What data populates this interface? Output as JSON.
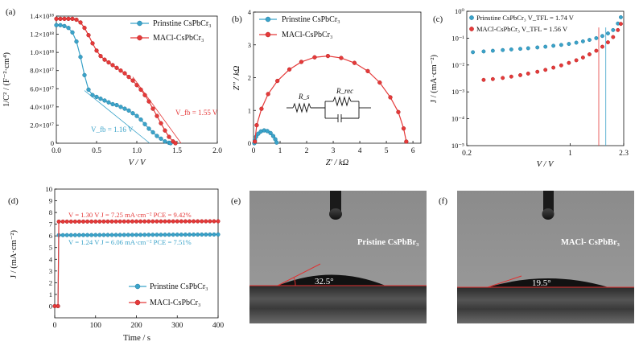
{
  "colors": {
    "blue": "#3ba3c9",
    "red": "#e53a3a",
    "axis": "#111111"
  },
  "chart_data": [
    {
      "panel": "(a)",
      "type": "line",
      "xlabel": "V / V",
      "ylabel": "1/C² / (F⁻²·cm⁴)",
      "xlim": [
        0,
        2.0
      ],
      "ylim": [
        0,
        1.4e+18
      ],
      "xticks": [
        "0.0",
        "0.5",
        "1.0",
        "1.5",
        "2.0"
      ],
      "yticks": [
        "0",
        "2.0×10¹⁷",
        "4.0×10¹⁷",
        "6.0×10¹⁷",
        "8.0×10¹⁷",
        "1.0×10¹⁸",
        "1.2×10¹⁸",
        "1.4×10¹⁸"
      ],
      "legend": [
        "Prinstine CsPbCr₃",
        "MACl-CsPbCr₃"
      ],
      "annotations": [
        "V_fb = 1.16 V",
        "V_fb = 1.55 V"
      ],
      "series": [
        {
          "name": "Prinstine CsPbCr₃",
          "color": "blue",
          "x": [
            0,
            0.05,
            0.1,
            0.15,
            0.2,
            0.25,
            0.3,
            0.35,
            0.4,
            0.45,
            0.5,
            0.55,
            0.6,
            0.65,
            0.7,
            0.75,
            0.8,
            0.85,
            0.9,
            0.95,
            1.0,
            1.05,
            1.1,
            1.15,
            1.2,
            1.25,
            1.3,
            1.35,
            1.4,
            1.42
          ],
          "y": [
            1.3e+18,
            1.3e+18,
            1.29e+18,
            1.27e+18,
            1.22e+18,
            1.12e+18,
            9.5e+17,
            7.5e+17,
            5.9e+17,
            5.3e+17,
            5.1e+17,
            4.9e+17,
            4.7e+17,
            4.5e+17,
            4.3e+17,
            4.2e+17,
            4e+17,
            3.8e+17,
            3.6e+17,
            3.3e+17,
            3e+17,
            2.6e+17,
            2.1e+17,
            1.6e+17,
            1.2e+17,
            8e+16,
            5e+16,
            2e+16,
            5000000000000000.0,
            0
          ]
        },
        {
          "name": "MACl-CsPbCr₃",
          "color": "red",
          "x": [
            0,
            0.05,
            0.1,
            0.15,
            0.2,
            0.25,
            0.3,
            0.35,
            0.4,
            0.45,
            0.5,
            0.55,
            0.6,
            0.65,
            0.7,
            0.75,
            0.8,
            0.85,
            0.9,
            0.95,
            1.0,
            1.05,
            1.1,
            1.15,
            1.2,
            1.25,
            1.3,
            1.35,
            1.4,
            1.45,
            1.48
          ],
          "y": [
            1.37e+18,
            1.37e+18,
            1.37e+18,
            1.37e+18,
            1.37e+18,
            1.36e+18,
            1.33e+18,
            1.27e+18,
            1.19e+18,
            1.1e+18,
            1.02e+18,
            9.6e+17,
            9.2e+17,
            8.9e+17,
            8.6e+17,
            8.3e+17,
            8e+17,
            7.7e+17,
            7.3e+17,
            6.9e+17,
            6.4e+17,
            5.9e+17,
            5.3e+17,
            4.6e+17,
            3.8e+17,
            3e+17,
            2.2e+17,
            1.4e+17,
            7e+16,
            2e+16,
            0
          ]
        }
      ],
      "fits": [
        {
          "color": "blue",
          "x": [
            0.35,
            1.16
          ],
          "y": [
            5.8e+17,
            0
          ]
        },
        {
          "color": "red",
          "x": [
            0.95,
            1.55
          ],
          "y": [
            7.3e+17,
            0
          ]
        }
      ]
    },
    {
      "panel": "(b)",
      "type": "scatter",
      "xlabel": "Z′ / kΩ",
      "ylabel": "Z″ / kΩ",
      "xlim": [
        0,
        6.3
      ],
      "ylim": [
        0,
        4
      ],
      "xticks": [
        "0",
        "1",
        "2",
        "3",
        "4",
        "5",
        "6"
      ],
      "yticks": [
        "0",
        "1",
        "2",
        "3",
        "4"
      ],
      "legend": [
        "Prinstine CsPbCr₃",
        "MACl-CsPbCr₃"
      ],
      "circuit_labels": [
        "R_s",
        "R_rec"
      ],
      "series": [
        {
          "name": "Prinstine CsPbCr₃",
          "color": "blue",
          "x": [
            0.03,
            0.05,
            0.1,
            0.18,
            0.28,
            0.4,
            0.52,
            0.64,
            0.74,
            0.82,
            0.87
          ],
          "y": [
            0,
            0.1,
            0.2,
            0.29,
            0.36,
            0.39,
            0.37,
            0.31,
            0.22,
            0.12,
            0.02
          ]
        },
        {
          "name": "MACl-CsPbCr₃",
          "color": "red",
          "x": [
            0.05,
            0.12,
            0.3,
            0.55,
            0.9,
            1.35,
            1.8,
            2.3,
            2.8,
            3.3,
            3.8,
            4.3,
            4.75,
            5.15,
            5.45,
            5.65,
            5.75
          ],
          "y": [
            0.05,
            0.55,
            1.05,
            1.5,
            1.9,
            2.25,
            2.48,
            2.62,
            2.66,
            2.6,
            2.45,
            2.2,
            1.85,
            1.4,
            0.95,
            0.45,
            0.05
          ]
        }
      ]
    },
    {
      "panel": "(c)",
      "type": "scatter",
      "scale": "log-log",
      "xlabel": "V / V",
      "ylabel": "J / (mA·cm⁻²)",
      "xlim": [
        0.2,
        2.3
      ],
      "ylim": [
        1e-05,
        1
      ],
      "xticks": [
        "0.2",
        "1",
        "2.3"
      ],
      "yticks": [
        "10⁻⁵",
        "10⁻⁴",
        "10⁻³",
        "10⁻²",
        "10⁻¹",
        "10⁰"
      ],
      "legend": [
        "Prinstine CsPbCr₃ V_TFL = 1.74 V",
        "MACl-CsPbCr₃ V_TFL = 1.56 V"
      ],
      "series": [
        {
          "name": "Prinstine CsPbCr₃",
          "color": "blue",
          "x": [
            0.22,
            0.26,
            0.3,
            0.35,
            0.4,
            0.46,
            0.52,
            0.6,
            0.68,
            0.77,
            0.87,
            0.98,
            1.1,
            1.22,
            1.35,
            1.5,
            1.65,
            1.8,
            1.95,
            2.1,
            2.2
          ],
          "y": [
            0.03,
            0.032,
            0.034,
            0.036,
            0.038,
            0.04,
            0.042,
            0.045,
            0.048,
            0.052,
            0.056,
            0.061,
            0.068,
            0.076,
            0.086,
            0.1,
            0.12,
            0.15,
            0.2,
            0.35,
            0.6
          ]
        },
        {
          "name": "MACl-CsPbCr₃",
          "color": "red",
          "x": [
            0.26,
            0.3,
            0.35,
            0.4,
            0.46,
            0.52,
            0.6,
            0.68,
            0.77,
            0.87,
            0.98,
            1.1,
            1.22,
            1.35,
            1.5,
            1.65,
            1.8,
            1.95,
            2.1,
            2.2
          ],
          "y": [
            0.0028,
            0.003,
            0.0033,
            0.0037,
            0.0042,
            0.0048,
            0.0056,
            0.0066,
            0.008,
            0.0097,
            0.012,
            0.015,
            0.019,
            0.025,
            0.034,
            0.048,
            0.07,
            0.11,
            0.2,
            0.34
          ]
        }
      ],
      "vlines": [
        {
          "color": "red",
          "x": 1.56
        },
        {
          "color": "blue",
          "x": 1.74
        }
      ]
    },
    {
      "panel": "(d)",
      "type": "line",
      "xlabel": "Time / s",
      "ylabel": "J / (mA·cm⁻²)",
      "xlim": [
        0,
        400
      ],
      "ylim": [
        -1,
        10
      ],
      "xticks": [
        "0",
        "100",
        "200",
        "300",
        "400"
      ],
      "yticks": [
        "0",
        "1",
        "2",
        "3",
        "4",
        "5",
        "6",
        "7",
        "8",
        "9",
        "10"
      ],
      "legend": [
        "Prinstine CsPbCr₃",
        "MACl-CsPbCr₃"
      ],
      "annotations": [
        "V = 1.30 V  J = 7.25 mA·cm⁻²  PCE = 9.42%",
        "V = 1.24 V  J = 6.06 mA·cm⁻²  PCE = 7.51%"
      ],
      "series": [
        {
          "name": "Prinstine CsPbCr₃",
          "color": "blue",
          "on_time": 10,
          "value_before": 0,
          "value_after": [
            6.06,
            6.12
          ]
        },
        {
          "name": "MACl-CsPbCr₃",
          "color": "red",
          "on_time": 10,
          "value_before": 0,
          "value_after": [
            7.22,
            7.25
          ]
        }
      ]
    }
  ],
  "photos": [
    {
      "panel": "(e)",
      "sample": "Pristine CsPbBr₃",
      "angle": "32.5°"
    },
    {
      "panel": "(f)",
      "sample": "MACl- CsPbBr₃",
      "angle": "19.5°"
    }
  ]
}
